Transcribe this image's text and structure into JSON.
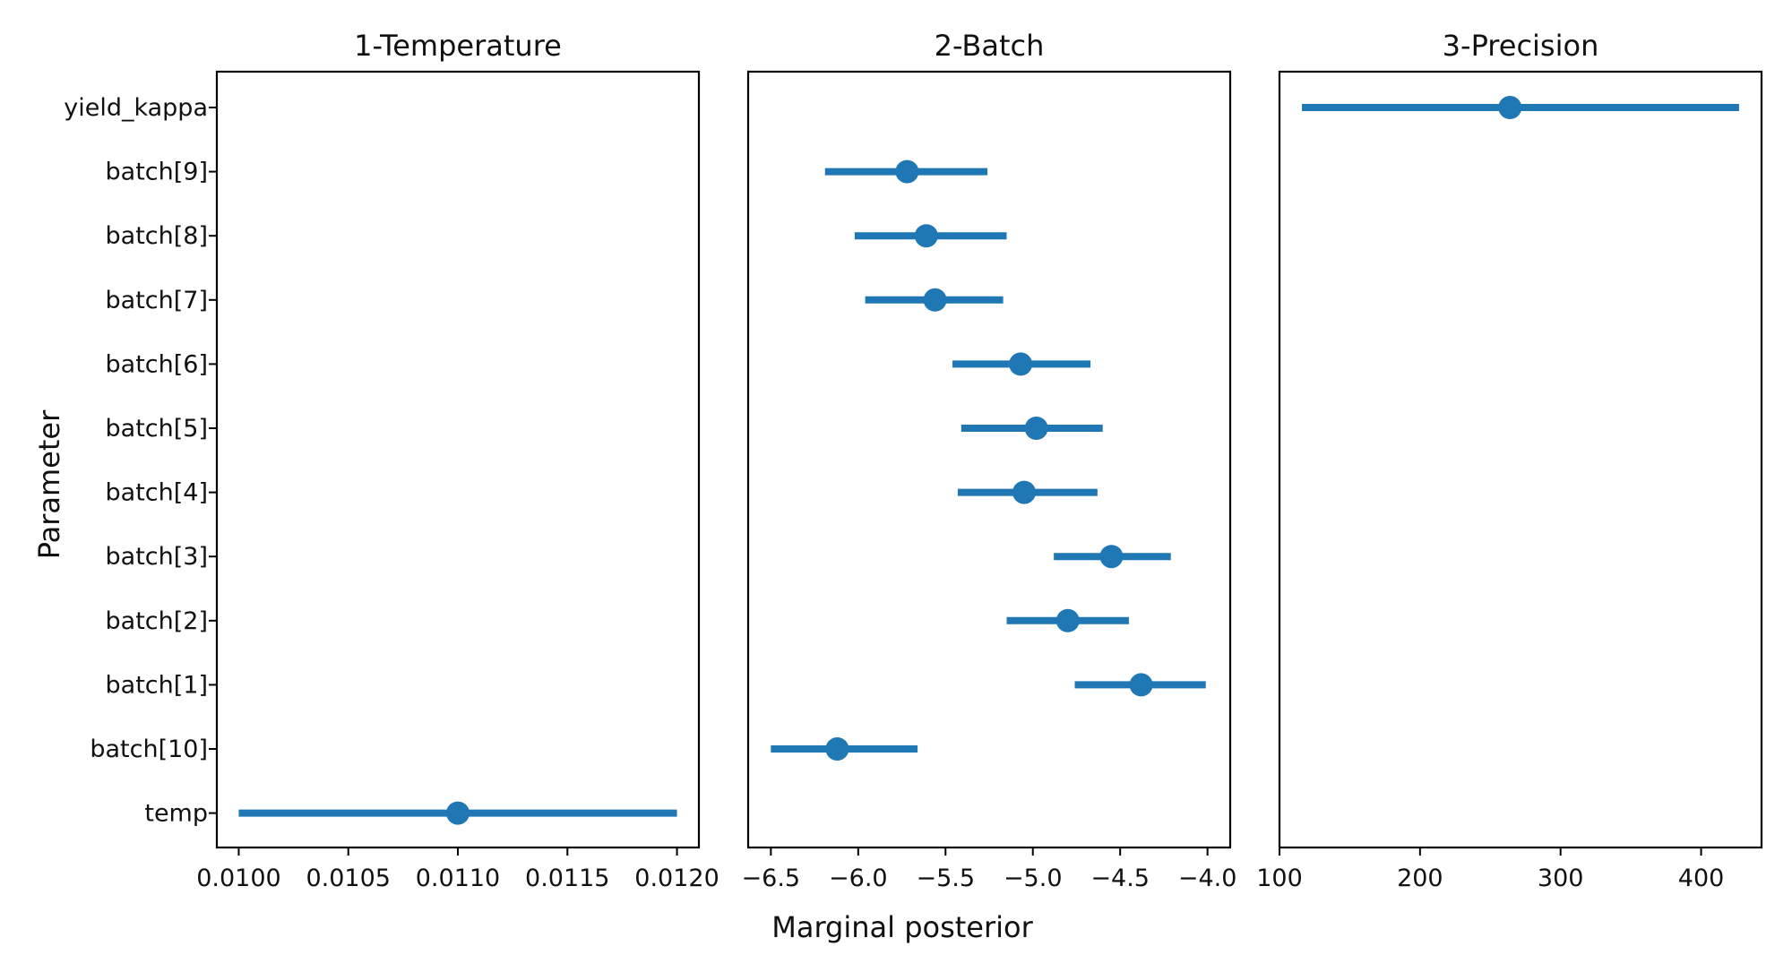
{
  "figure": {
    "xlabel": "Marginal posterior",
    "ylabel": "Parameter"
  },
  "colors": {
    "series": "#1f77b4"
  },
  "chart_data": {
    "type": "scatter",
    "categories": [
      "yield_kappa",
      "batch[9]",
      "batch[8]",
      "batch[7]",
      "batch[6]",
      "batch[5]",
      "batch[4]",
      "batch[3]",
      "batch[2]",
      "batch[1]",
      "batch[10]",
      "temp"
    ],
    "panels": [
      {
        "title": "1-Temperature",
        "xlim": [
          0.0099,
          0.0121
        ],
        "xticks": [
          0.01,
          0.0105,
          0.011,
          0.0115,
          0.012
        ],
        "xtick_labels": [
          "0.0100",
          "0.0105",
          "0.0110",
          "0.0115",
          "0.0120"
        ],
        "points": [
          {
            "param": "temp",
            "value": 0.011,
            "low": 0.01,
            "high": 0.012
          }
        ]
      },
      {
        "title": "2-Batch",
        "xlim": [
          -6.63,
          -3.87
        ],
        "xticks": [
          -6.5,
          -6.0,
          -5.5,
          -5.0,
          -4.5,
          -4.0
        ],
        "xtick_labels": [
          "−6.5",
          "−6.0",
          "−5.5",
          "−5.0",
          "−4.5",
          "−4.0"
        ],
        "points": [
          {
            "param": "batch[9]",
            "value": -5.72,
            "low": -6.19,
            "high": -5.26
          },
          {
            "param": "batch[8]",
            "value": -5.61,
            "low": -6.02,
            "high": -5.15
          },
          {
            "param": "batch[7]",
            "value": -5.56,
            "low": -5.96,
            "high": -5.17
          },
          {
            "param": "batch[6]",
            "value": -5.07,
            "low": -5.46,
            "high": -4.67
          },
          {
            "param": "batch[5]",
            "value": -4.98,
            "low": -5.41,
            "high": -4.6
          },
          {
            "param": "batch[4]",
            "value": -5.05,
            "low": -5.43,
            "high": -4.63
          },
          {
            "param": "batch[3]",
            "value": -4.55,
            "low": -4.88,
            "high": -4.21
          },
          {
            "param": "batch[2]",
            "value": -4.8,
            "low": -5.15,
            "high": -4.45
          },
          {
            "param": "batch[1]",
            "value": -4.38,
            "low": -4.76,
            "high": -4.01
          },
          {
            "param": "batch[10]",
            "value": -6.12,
            "low": -6.5,
            "high": -5.66
          }
        ]
      },
      {
        "title": "3-Precision",
        "xlim": [
          100,
          443
        ],
        "xticks": [
          100,
          200,
          300,
          400
        ],
        "xtick_labels": [
          "100",
          "200",
          "300",
          "400"
        ],
        "points": [
          {
            "param": "yield_kappa",
            "value": 264,
            "low": 116,
            "high": 427
          }
        ]
      }
    ]
  }
}
